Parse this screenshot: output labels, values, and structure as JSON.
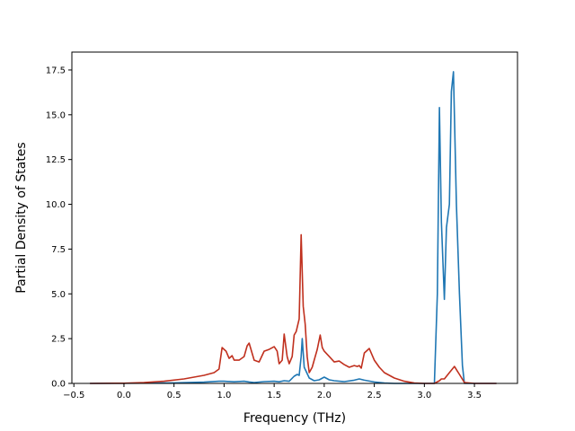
{
  "chart_data": {
    "type": "line",
    "title": "",
    "xlabel": "Frequency (THz)",
    "ylabel": "Partial Density of States",
    "xlim": [
      -0.52,
      3.93
    ],
    "ylim": [
      0,
      18.5
    ],
    "grid": false,
    "legend": "none",
    "xticks": [
      -0.5,
      0.0,
      0.5,
      1.0,
      1.5,
      2.0,
      2.5,
      3.0,
      3.5
    ],
    "xtick_labels": [
      "−0.5",
      "0.0",
      "0.5",
      "1.0",
      "1.5",
      "2.0",
      "2.5",
      "3.0",
      "3.5"
    ],
    "yticks": [
      0.0,
      2.5,
      5.0,
      7.5,
      10.0,
      12.5,
      15.0,
      17.5
    ],
    "ytick_labels": [
      "0.0",
      "2.5",
      "5.0",
      "7.5",
      "10.0",
      "12.5",
      "15.0",
      "17.5"
    ],
    "series": [
      {
        "color": "#1f77b4",
        "x": [
          -0.34,
          0.0,
          0.5,
          0.8,
          0.95,
          1.0,
          1.1,
          1.2,
          1.25,
          1.3,
          1.4,
          1.5,
          1.55,
          1.6,
          1.65,
          1.7,
          1.73,
          1.75,
          1.77,
          1.78,
          1.8,
          1.85,
          1.9,
          1.95,
          2.0,
          2.05,
          2.1,
          2.2,
          2.3,
          2.35,
          2.4,
          2.5,
          2.6,
          2.7,
          2.8,
          3.0,
          3.1,
          3.13,
          3.15,
          3.17,
          3.2,
          3.22,
          3.25,
          3.27,
          3.29,
          3.32,
          3.35,
          3.38,
          3.4,
          3.5,
          3.72
        ],
        "y": [
          0,
          0.01,
          0.03,
          0.07,
          0.12,
          0.12,
          0.09,
          0.12,
          0.08,
          0.05,
          0.1,
          0.12,
          0.09,
          0.15,
          0.12,
          0.4,
          0.5,
          0.45,
          1.5,
          2.5,
          0.9,
          0.3,
          0.15,
          0.2,
          0.35,
          0.2,
          0.15,
          0.1,
          0.18,
          0.25,
          0.18,
          0.08,
          0.02,
          0,
          0,
          0,
          0,
          5.0,
          15.4,
          9.0,
          4.7,
          8.7,
          10.0,
          16.3,
          17.4,
          10.0,
          5.0,
          1.0,
          0,
          0,
          0
        ]
      },
      {
        "color": "#c0301e",
        "x": [
          -0.34,
          0.0,
          0.2,
          0.4,
          0.6,
          0.8,
          0.9,
          0.95,
          0.98,
          1.02,
          1.05,
          1.08,
          1.1,
          1.15,
          1.2,
          1.23,
          1.25,
          1.3,
          1.35,
          1.4,
          1.45,
          1.5,
          1.53,
          1.55,
          1.58,
          1.6,
          1.63,
          1.65,
          1.68,
          1.7,
          1.72,
          1.75,
          1.77,
          1.79,
          1.81,
          1.83,
          1.85,
          1.88,
          1.9,
          1.93,
          1.96,
          1.98,
          2.0,
          2.05,
          2.1,
          2.15,
          2.2,
          2.25,
          2.3,
          2.33,
          2.35,
          2.37,
          2.4,
          2.45,
          2.5,
          2.55,
          2.6,
          2.7,
          2.8,
          2.9,
          3.0,
          3.1,
          3.15,
          3.17,
          3.2,
          3.25,
          3.3,
          3.35,
          3.4,
          3.5,
          3.72
        ],
        "y": [
          0,
          0.01,
          0.05,
          0.12,
          0.25,
          0.45,
          0.6,
          0.8,
          2.0,
          1.8,
          1.4,
          1.55,
          1.3,
          1.3,
          1.5,
          2.1,
          2.25,
          1.3,
          1.2,
          1.8,
          1.9,
          2.05,
          1.8,
          1.1,
          1.3,
          2.75,
          1.5,
          1.1,
          1.5,
          2.7,
          2.9,
          3.6,
          8.3,
          4.3,
          3.3,
          1.5,
          0.6,
          0.9,
          1.3,
          1.9,
          2.7,
          2.0,
          1.8,
          1.5,
          1.2,
          1.25,
          1.05,
          0.9,
          1.0,
          0.95,
          1.0,
          0.85,
          1.7,
          1.95,
          1.3,
          0.9,
          0.6,
          0.3,
          0.12,
          0.02,
          0,
          0,
          0.15,
          0.25,
          0.25,
          0.6,
          0.95,
          0.5,
          0.05,
          0,
          0
        ]
      }
    ]
  }
}
